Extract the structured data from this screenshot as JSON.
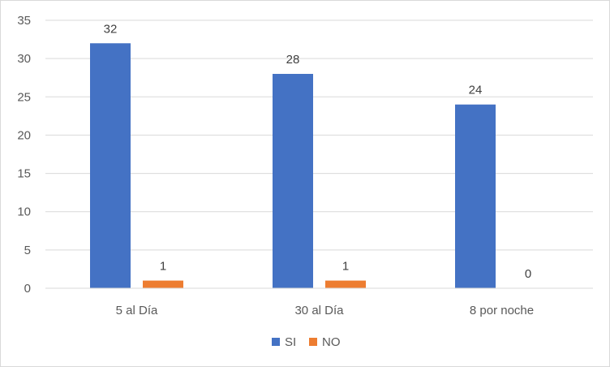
{
  "chart_data": {
    "type": "bar",
    "title": "",
    "xlabel": "",
    "ylabel": "",
    "categories": [
      "5 al Día",
      "30 al Día",
      "8 por noche"
    ],
    "series": [
      {
        "name": "SI",
        "values": [
          32,
          28,
          24
        ],
        "color": "#4472C4"
      },
      {
        "name": "NO",
        "values": [
          1,
          1,
          0
        ],
        "color": "#ED7D31"
      }
    ],
    "ylim": [
      0,
      35
    ],
    "yticks": [
      0,
      5,
      10,
      15,
      20,
      25,
      30,
      35
    ],
    "grid": true,
    "legend_position": "bottom",
    "data_labels": true
  }
}
